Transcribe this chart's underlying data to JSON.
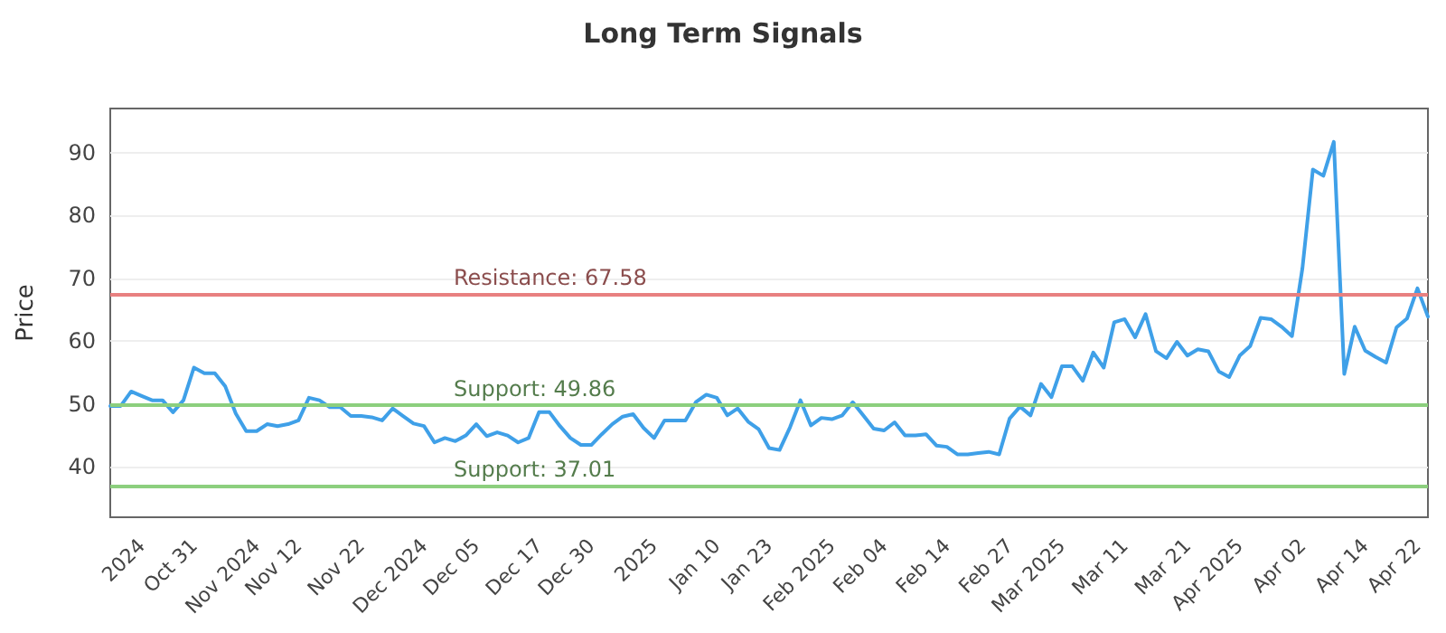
{
  "chart_data": {
    "type": "line",
    "title": "Long Term Signals",
    "ylabel": "Price",
    "categories": [
      null,
      null,
      null,
      "2024",
      null,
      null,
      null,
      null,
      "Oct 31",
      null,
      null,
      null,
      null,
      null,
      "Nov 2024",
      null,
      null,
      null,
      "Nov 12",
      null,
      null,
      null,
      null,
      null,
      "Nov 22",
      null,
      null,
      null,
      null,
      null,
      "Dec 2024",
      null,
      null,
      null,
      null,
      "Dec 05",
      null,
      null,
      null,
      null,
      null,
      "Dec 17",
      null,
      null,
      null,
      null,
      "Dec 30",
      null,
      null,
      null,
      null,
      null,
      "2025",
      null,
      null,
      null,
      null,
      null,
      "Jan 10",
      null,
      null,
      null,
      null,
      "Jan 23",
      null,
      null,
      null,
      null,
      null,
      "Feb 2025",
      null,
      null,
      null,
      null,
      "Feb 04",
      null,
      null,
      null,
      null,
      null,
      "Feb 14",
      null,
      null,
      null,
      null,
      null,
      "Feb 27",
      null,
      null,
      null,
      null,
      "Mar 2025",
      null,
      null,
      null,
      null,
      null,
      "Mar 11",
      null,
      null,
      null,
      null,
      null,
      "Mar 21",
      null,
      null,
      null,
      null,
      "Apr 2025",
      null,
      null,
      null,
      null,
      null,
      "Apr 02",
      null,
      null,
      null,
      null,
      null,
      "Apr 14",
      null,
      null,
      null,
      null,
      "Apr 22",
      null
    ],
    "series": [
      {
        "color": "#3fa0e8",
        "values": [
          49.7,
          49.7,
          52.0,
          51.3,
          50.6,
          50.6,
          48.7,
          50.6,
          55.8,
          54.9,
          54.9,
          52.8,
          48.5,
          45.7,
          45.7,
          46.8,
          46.5,
          46.8,
          47.4,
          51.0,
          50.6,
          49.5,
          49.5,
          48.1,
          48.1,
          47.9,
          47.4,
          49.3,
          48.1,
          46.9,
          46.5,
          43.9,
          44.6,
          44.1,
          45.0,
          46.8,
          44.9,
          45.5,
          45.0,
          43.9,
          44.6,
          48.7,
          48.7,
          46.5,
          44.6,
          43.5,
          43.5,
          45.2,
          46.8,
          48.0,
          48.4,
          46.2,
          44.6,
          47.4,
          47.4,
          47.4,
          50.3,
          51.5,
          51.0,
          48.2,
          49.3,
          47.2,
          46.0,
          43.0,
          42.7,
          46.3,
          50.6,
          46.6,
          47.8,
          47.6,
          48.2,
          50.3,
          48.2,
          46.1,
          45.8,
          47.1,
          45.0,
          45.0,
          45.2,
          43.4,
          43.2,
          42.0,
          42.0,
          42.2,
          42.4,
          42.0,
          47.7,
          49.6,
          48.2,
          53.2,
          51.1,
          56.0,
          56.0,
          53.7,
          58.2,
          55.8,
          63.0,
          63.5,
          60.6,
          64.3,
          58.4,
          57.3,
          59.9,
          57.7,
          58.7,
          58.4,
          55.2,
          54.3,
          57.7,
          59.2,
          63.7,
          63.5,
          62.3,
          60.8,
          71.6,
          87.3,
          86.3,
          91.7,
          54.8,
          62.3,
          58.5,
          57.5,
          56.6,
          62.2,
          63.6,
          68.4,
          63.9
        ]
      }
    ],
    "ylim": [
      32,
      97
    ],
    "yticks": [
      40,
      50,
      60,
      70,
      80,
      90
    ],
    "grid": "y",
    "marker": "none",
    "line_style": "solid",
    "ref_lines": [
      {
        "axis": "y",
        "value": 67.58,
        "label": "Resistance: 67.58",
        "color": "#e88080"
      },
      {
        "axis": "y",
        "value": 49.86,
        "label": "Support: 49.86",
        "color": "#8ccf7e"
      },
      {
        "axis": "y",
        "value": 37.01,
        "label": "Support: 37.01",
        "color": "#8ccf7e"
      }
    ]
  }
}
